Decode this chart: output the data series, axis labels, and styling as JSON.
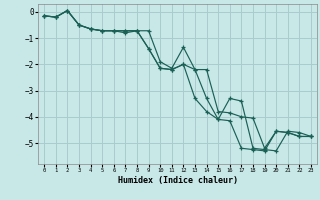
{
  "xlabel": "Humidex (Indice chaleur)",
  "ylabel": "",
  "xlim": [
    -0.5,
    23.5
  ],
  "ylim": [
    -5.8,
    0.3
  ],
  "yticks": [
    0,
    -1,
    -2,
    -3,
    -4,
    -5
  ],
  "xticks": [
    0,
    1,
    2,
    3,
    4,
    5,
    6,
    7,
    8,
    9,
    10,
    11,
    12,
    13,
    14,
    15,
    16,
    17,
    18,
    19,
    20,
    21,
    22,
    23
  ],
  "bg_color": "#c8e8e8",
  "grid_color": "#aacccc",
  "line_color": "#1a6055",
  "line1_x": [
    0,
    1,
    2,
    3,
    4,
    5,
    6,
    7,
    8,
    9,
    10,
    11,
    12,
    13,
    14,
    15,
    16,
    17,
    18,
    19,
    20,
    21,
    22,
    23
  ],
  "line1_y": [
    -0.15,
    -0.2,
    0.05,
    -0.5,
    -0.65,
    -0.72,
    -0.72,
    -0.72,
    -0.72,
    -0.72,
    -1.9,
    -2.15,
    -1.35,
    -2.2,
    -2.2,
    -3.8,
    -3.85,
    -4.0,
    -4.05,
    -5.2,
    -4.55,
    -4.6,
    -4.75,
    -4.75
  ],
  "line2_x": [
    0,
    1,
    2,
    3,
    4,
    5,
    6,
    7,
    8,
    9,
    10,
    11,
    12,
    13,
    14,
    15,
    16,
    17,
    18,
    19,
    20,
    21,
    22,
    23
  ],
  "line2_y": [
    -0.15,
    -0.2,
    0.05,
    -0.5,
    -0.65,
    -0.72,
    -0.72,
    -0.72,
    -0.72,
    -1.4,
    -2.15,
    -2.2,
    -2.0,
    -2.2,
    -3.3,
    -4.1,
    -3.3,
    -3.4,
    -5.2,
    -5.25,
    -5.3,
    -4.55,
    -4.6,
    -4.75
  ],
  "line3_x": [
    0,
    1,
    2,
    3,
    4,
    5,
    6,
    7,
    8,
    9,
    10,
    11,
    12,
    13,
    14,
    15,
    16,
    17,
    18,
    19,
    20,
    21,
    22,
    23
  ],
  "line3_y": [
    -0.15,
    -0.2,
    0.05,
    -0.5,
    -0.65,
    -0.72,
    -0.72,
    -0.8,
    -0.72,
    -1.4,
    -2.15,
    -2.2,
    -2.0,
    -3.3,
    -3.8,
    -4.1,
    -4.15,
    -5.2,
    -5.25,
    -5.3,
    -4.55,
    -4.6,
    -4.75,
    -4.75
  ]
}
